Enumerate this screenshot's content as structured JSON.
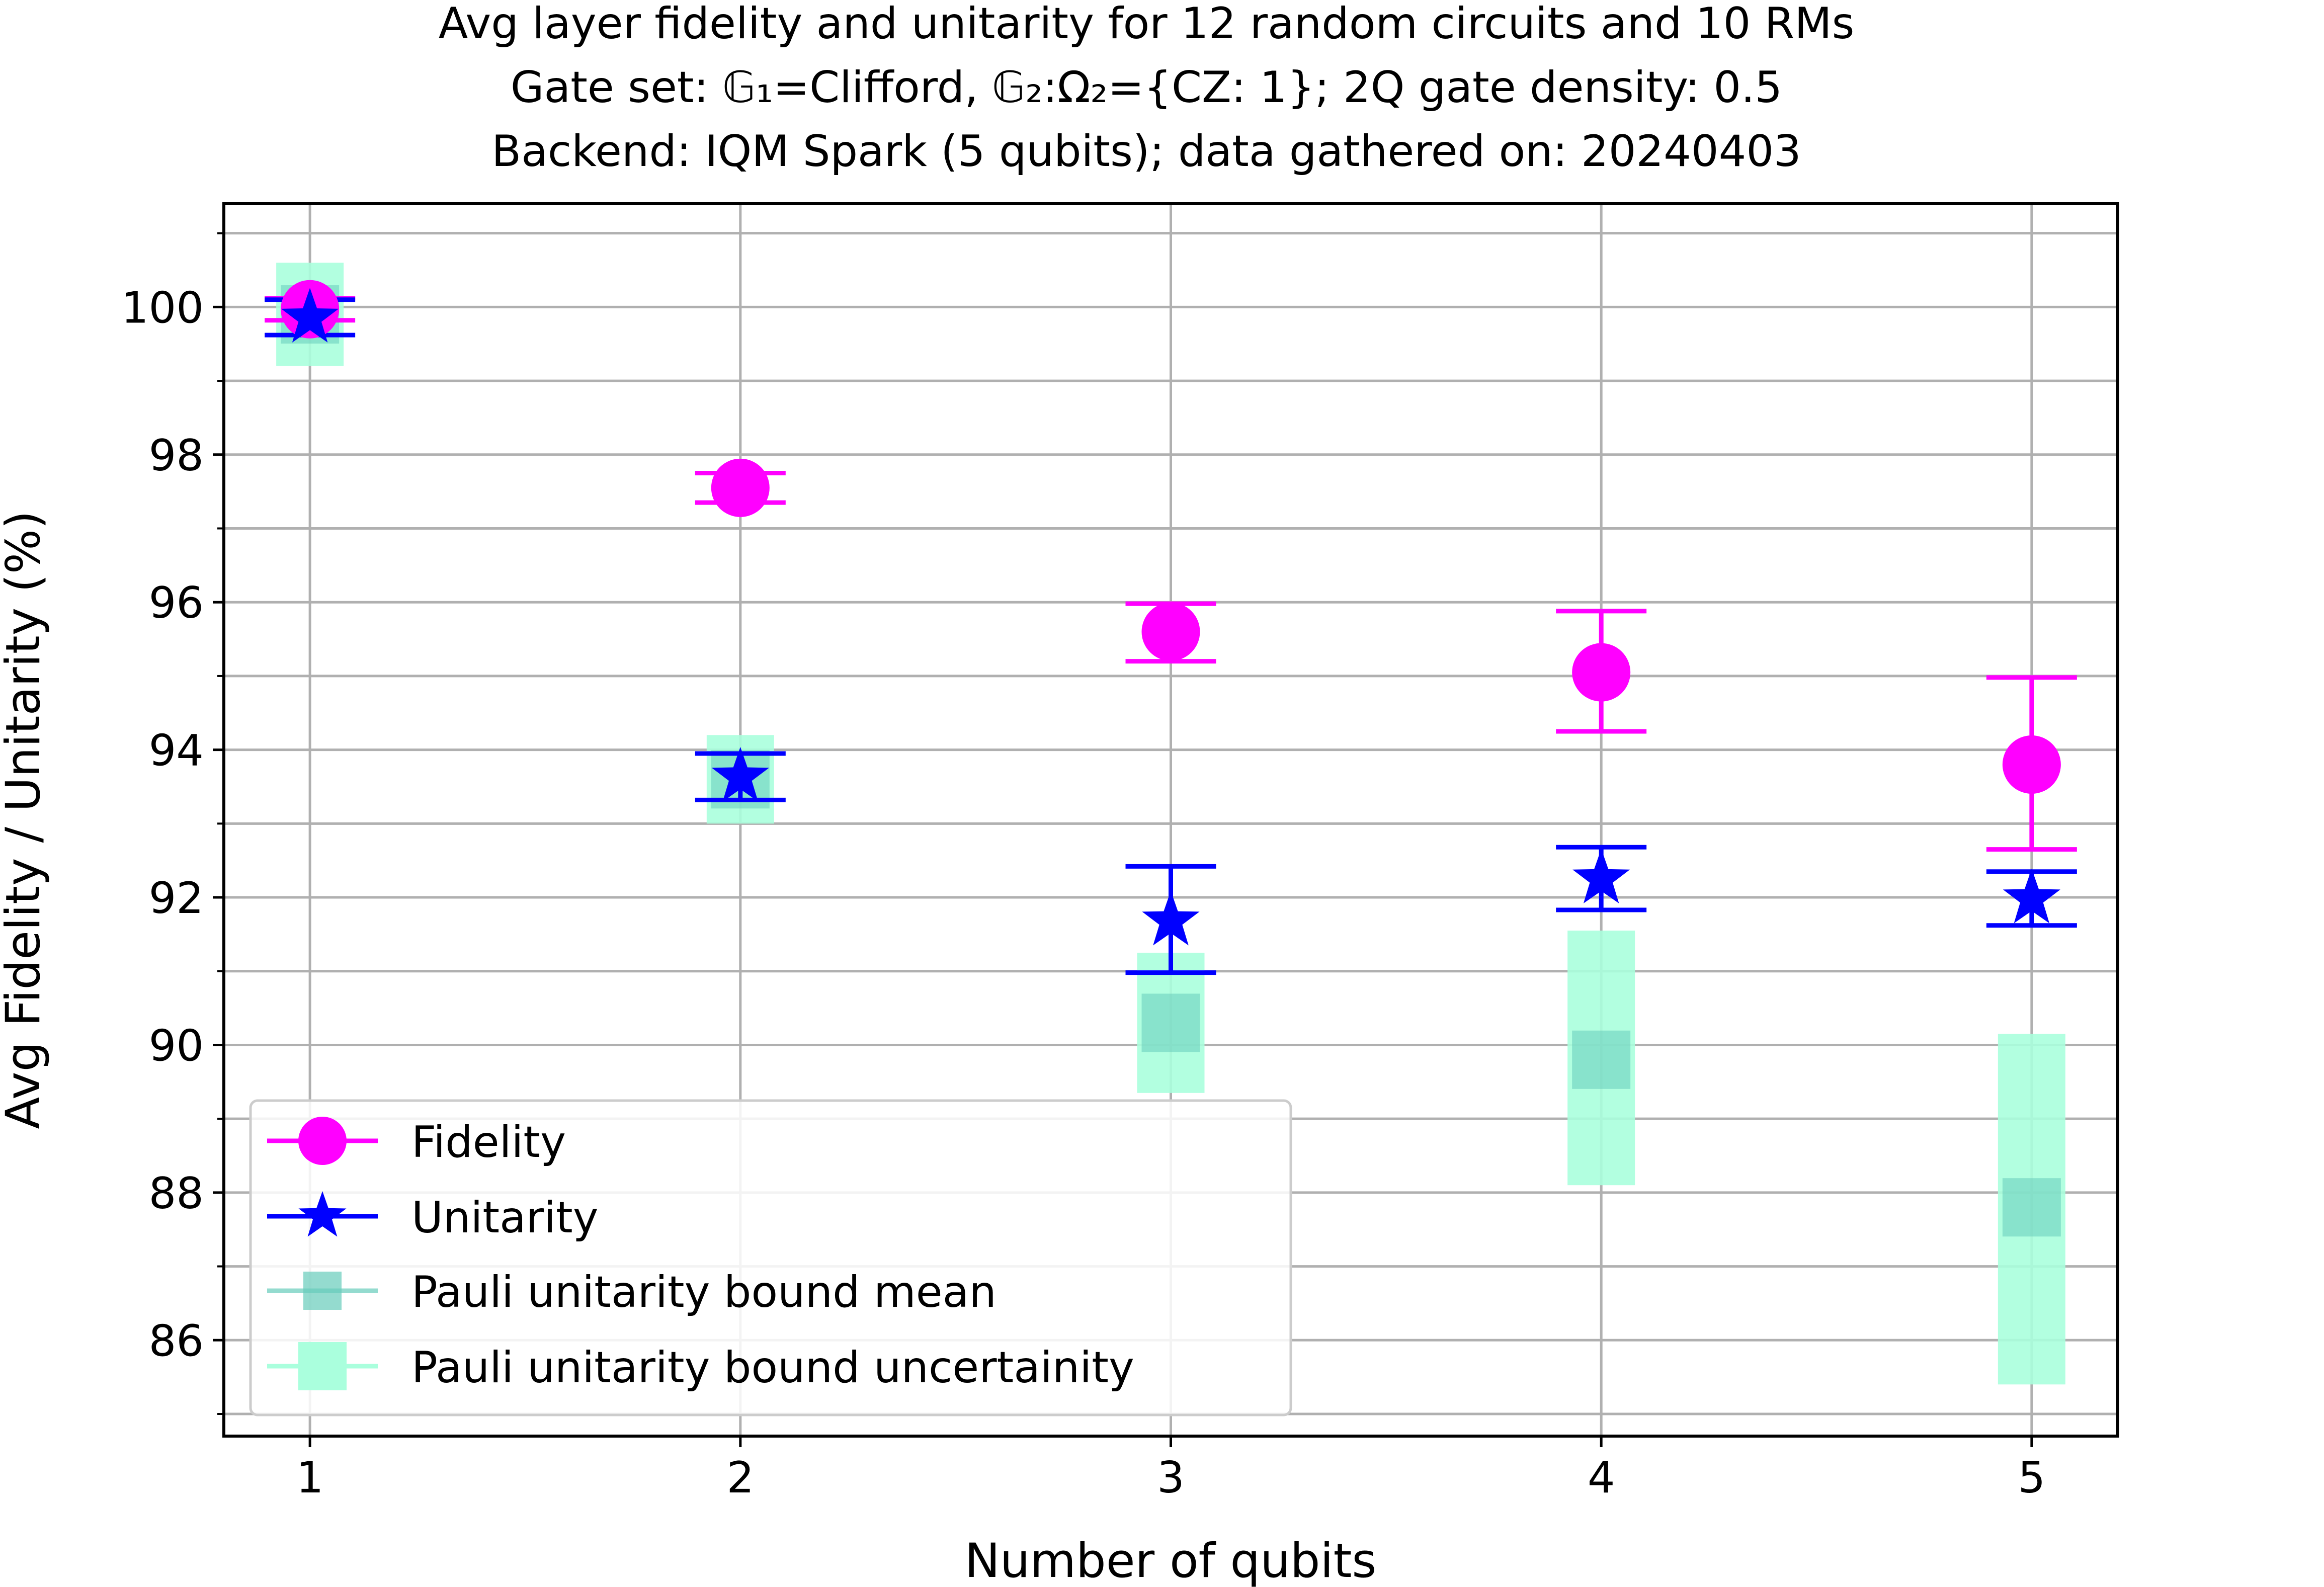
{
  "chart_data": {
    "type": "scatter",
    "title_lines": [
      "Avg layer fidelity and unitarity for 12 random circuits and 10 RMs",
      "Gate set: 𝔾₁=Clifford, 𝔾₂:Ω₂={CZ: 1}; 2Q gate density: 0.5",
      "Backend: IQM Spark (5 qubits); data gathered on: 20240403"
    ],
    "xlabel": "Number of qubits",
    "ylabel": "Avg Fidelity / Unitarity (%)",
    "xlim": [
      0.8,
      5.2
    ],
    "ylim": [
      84.7,
      101.4
    ],
    "x_ticks": [
      1,
      2,
      3,
      4,
      5
    ],
    "y_ticks": [
      86,
      88,
      90,
      92,
      94,
      96,
      98,
      100
    ],
    "y_minor_ticks": [
      85,
      87,
      89,
      91,
      93,
      95,
      97,
      99,
      101
    ],
    "grid": true,
    "legend_position": "lower-left",
    "colors": {
      "fidelity": "#ff00ff",
      "unitarity": "#0000ff",
      "bound_mean": "#66ccbb",
      "bound_uncertainty": "#aaffdd"
    },
    "series": [
      {
        "name": "Fidelity",
        "marker": "circle",
        "x": [
          1,
          2,
          3,
          4,
          5
        ],
        "y": [
          99.97,
          97.55,
          95.6,
          95.05,
          93.8
        ],
        "yerr_low": [
          99.82,
          97.35,
          95.2,
          94.25,
          92.65
        ],
        "yerr_high": [
          100.12,
          97.75,
          95.98,
          95.88,
          94.98
        ]
      },
      {
        "name": "Unitarity",
        "marker": "star",
        "x": [
          1,
          2,
          3,
          4,
          5
        ],
        "y": [
          99.85,
          93.63,
          91.68,
          92.25,
          91.98
        ],
        "yerr_low": [
          99.62,
          93.32,
          90.98,
          91.83,
          91.62
        ],
        "yerr_high": [
          100.1,
          93.95,
          92.42,
          92.68,
          92.35
        ]
      },
      {
        "name": "Pauli unitarity bound mean",
        "marker": "square",
        "x": [
          1,
          2,
          3,
          4,
          5
        ],
        "y": [
          99.9,
          93.6,
          90.3,
          89.8,
          87.8
        ]
      },
      {
        "name": "Pauli unitarity bound uncertainity",
        "marker": "square",
        "x": [
          1,
          2,
          3,
          4,
          5
        ],
        "low": [
          99.2,
          93.0,
          89.35,
          88.1,
          85.4
        ],
        "high": [
          100.6,
          94.2,
          91.25,
          91.55,
          90.15
        ]
      }
    ]
  }
}
